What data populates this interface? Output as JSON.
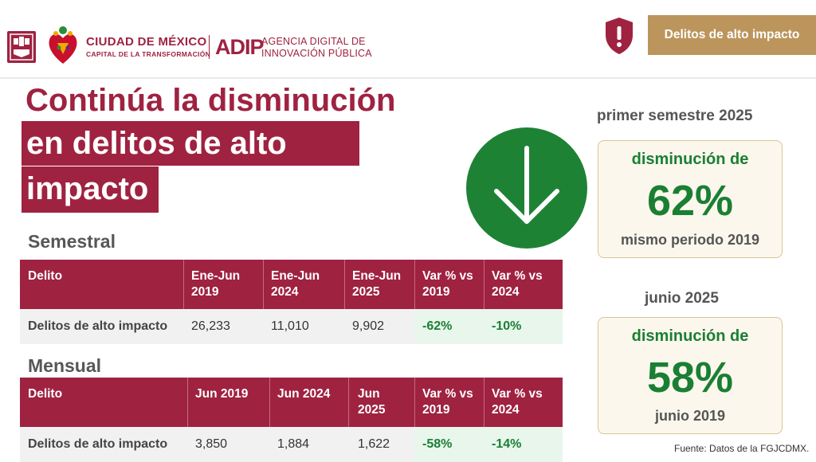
{
  "header": {
    "org_title": "CIUDAD DE MÉXICO",
    "org_subtitle": "CAPITAL DE LA TRANSFORMACIÓN",
    "agency_mark": "ADIP",
    "agency_line1": "AGENCIA DIGITAL DE",
    "agency_line2": "INNOVACIÓN PÚBLICA",
    "topic_tab": "Delitos de alto impacto"
  },
  "title": {
    "line1": "Continúa la disminución",
    "line2": "en delitos de alto",
    "line3": "impacto"
  },
  "semestral": {
    "heading": "Semestral",
    "columns": [
      {
        "l1": "Delito",
        "l2": ""
      },
      {
        "l1": "Ene-Jun",
        "l2": "2019"
      },
      {
        "l1": "Ene-Jun",
        "l2": "2024"
      },
      {
        "l1": "Ene-Jun",
        "l2": "2025"
      },
      {
        "l1": "Var % vs",
        "l2": "2019"
      },
      {
        "l1": "Var % vs",
        "l2": "2024"
      }
    ],
    "row": [
      "Delitos de alto impacto",
      "26,233",
      "11,010",
      "9,902",
      "-62%",
      "-10%"
    ]
  },
  "mensual": {
    "heading": "Mensual",
    "columns": [
      {
        "l1": "Delito",
        "l2": ""
      },
      {
        "l1": "Jun 2019",
        "l2": ""
      },
      {
        "l1": "Jun 2024",
        "l2": ""
      },
      {
        "l1": "Jun",
        "l2": "2025"
      },
      {
        "l1": "Var % vs",
        "l2": "2019"
      },
      {
        "l1": "Var % vs",
        "l2": "2024"
      }
    ],
    "row": [
      "Delitos de alto impacto",
      "3,850",
      "1,884",
      "1,622",
      "-58%",
      "-14%"
    ]
  },
  "summary": {
    "card1": {
      "period": "primer semestre 2025",
      "top": "disminución de",
      "pct": "62%",
      "bottom": "mismo periodo 2019"
    },
    "card2": {
      "period": "junio 2025",
      "top": "disminución de",
      "pct": "58%",
      "bottom": "junio 2019"
    }
  },
  "source": "Fuente: Datos de la FGJCDMX.",
  "colors": {
    "brand": "#9f2241",
    "gold": "#bc955c",
    "green": "#1e8235"
  }
}
